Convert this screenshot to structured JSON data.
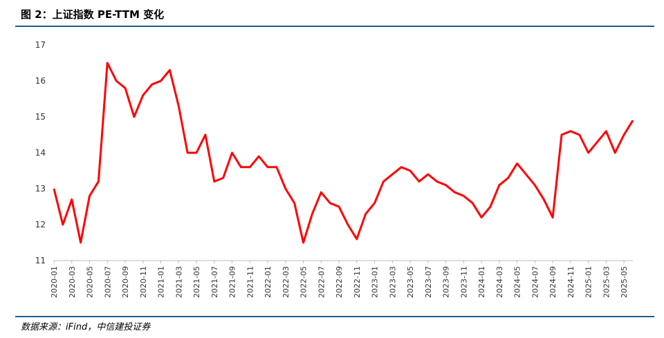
{
  "chart_data": {
    "type": "line",
    "title": "图 2：上证指数 PE-TTM 变化",
    "source": "数据来源：iFind，中信建投证券",
    "categories": [
      "2020-01",
      null,
      "2020-03",
      null,
      "2020-05",
      null,
      "2020-07",
      null,
      "2020-09",
      null,
      "2020-11",
      null,
      "2021-01",
      null,
      "2021-03",
      null,
      "2021-05",
      null,
      "2021-07",
      null,
      "2021-09",
      null,
      "2021-11",
      null,
      "2022-01",
      null,
      "2022-03",
      null,
      "2022-05",
      null,
      "2022-07",
      null,
      "2022-09",
      null,
      "2022-11",
      null,
      "2023-01",
      null,
      "2023-03",
      null,
      "2023-05",
      null,
      "2023-07",
      null,
      "2023-09",
      null,
      "2023-11",
      null,
      "2024-01",
      null,
      "2024-03",
      null,
      "2024-05",
      null,
      "2024-07",
      null,
      "2024-09",
      null,
      "2024-11",
      null,
      "2025-01",
      null,
      "2025-03",
      null,
      "2025-05",
      null
    ],
    "series": [
      {
        "color": "#ff0000",
        "values": [
          13.0,
          12.0,
          12.7,
          11.5,
          12.8,
          13.2,
          16.5,
          16.0,
          15.8,
          15.0,
          15.6,
          15.9,
          16.0,
          16.3,
          15.3,
          14.0,
          14.0,
          14.5,
          13.2,
          13.3,
          14.0,
          13.6,
          13.6,
          13.9,
          13.6,
          13.6,
          13.0,
          12.6,
          11.5,
          12.3,
          12.9,
          12.6,
          12.5,
          12.0,
          11.6,
          12.3,
          12.6,
          13.2,
          13.4,
          13.6,
          13.5,
          13.2,
          13.4,
          13.2,
          13.1,
          12.9,
          12.8,
          12.6,
          12.2,
          12.5,
          13.1,
          13.3,
          13.7,
          13.4,
          13.1,
          12.7,
          12.2,
          14.5,
          14.6,
          14.5,
          14.0,
          14.3,
          14.6,
          14.0,
          14.5,
          14.9
        ]
      }
    ],
    "ylim": [
      11,
      17
    ],
    "yticks": [
      11,
      12,
      13,
      14,
      15,
      16,
      17
    ],
    "grid": false
  }
}
